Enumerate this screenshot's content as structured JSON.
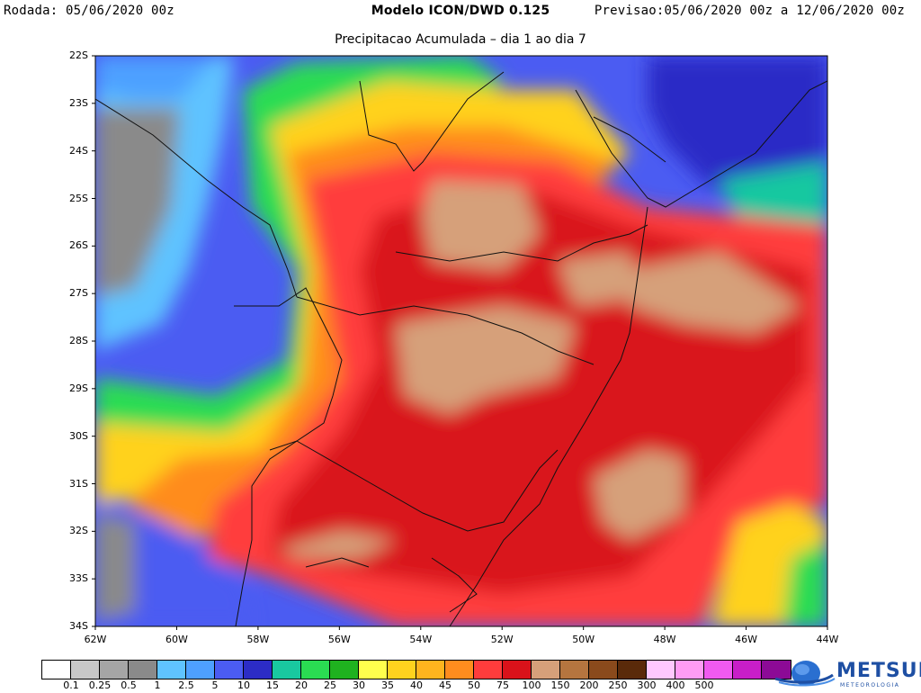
{
  "header": {
    "left": "Rodada: 05/06/2020 00z",
    "center": "Modelo ICON/DWD 0.125",
    "right": "Previsao:05/06/2020 00z a 12/06/2020 00z",
    "subtitle": "Precipitacao Acumulada – dia 1 ao dia 7"
  },
  "axes": {
    "y_ticks": [
      "22S",
      "23S",
      "24S",
      "25S",
      "26S",
      "27S",
      "28S",
      "29S",
      "30S",
      "31S",
      "32S",
      "33S",
      "34S"
    ],
    "x_ticks": [
      "62W",
      "60W",
      "58W",
      "56W",
      "54W",
      "52W",
      "50W",
      "48W",
      "46W",
      "44W"
    ]
  },
  "colorbar": {
    "levels": [
      "0.1",
      "0.25",
      "0.5",
      "1",
      "2.5",
      "5",
      "10",
      "15",
      "20",
      "25",
      "30",
      "35",
      "40",
      "45",
      "50",
      "75",
      "100",
      "150",
      "200",
      "250",
      "300",
      "400",
      "500"
    ],
    "colors": [
      "#ffffff",
      "#c8c8c8",
      "#a5a5a5",
      "#8a8a8a",
      "#5fc3ff",
      "#4ea0ff",
      "#4b5cf2",
      "#2c2cc6",
      "#19c8a0",
      "#2adc52",
      "#1fb21f",
      "#ffff4d",
      "#ffd21e",
      "#ffb41e",
      "#ff8c1e",
      "#ff3c3c",
      "#d9121a",
      "#d6a07a",
      "#b5753f",
      "#8a4a1c",
      "#5a2a0a",
      "#ffc8ff",
      "#ff9cf5",
      "#f05af0",
      "#c81ec8",
      "#8c0a96"
    ]
  },
  "logo": {
    "name": "METSUL",
    "tagline": "METEOROLOGIA",
    "icon": "globe-swirl-icon"
  }
}
